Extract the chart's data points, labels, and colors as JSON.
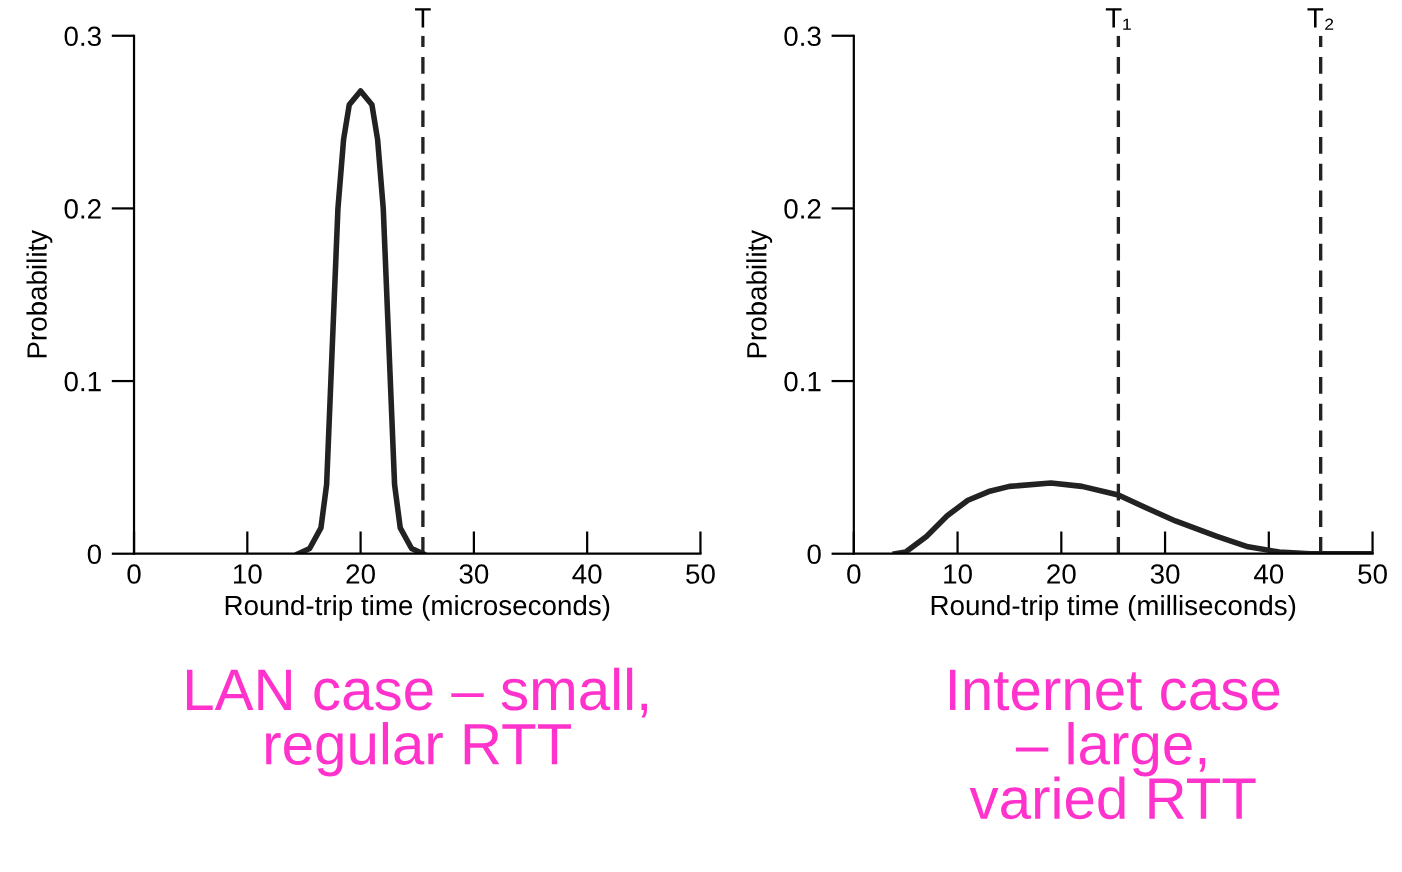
{
  "chart_data": [
    {
      "type": "line",
      "xlabel": "Round-trip time (microseconds)",
      "ylabel": "Probability",
      "xlim": [
        0,
        50
      ],
      "ylim": [
        0,
        0.3
      ],
      "xticks": [
        0,
        10,
        20,
        30,
        40,
        50
      ],
      "yticks": [
        0,
        0.1,
        0.2,
        0.3
      ],
      "series": [
        {
          "color": "#222222",
          "x": [
            14.5,
            15.5,
            16.5,
            17,
            18,
            18.5,
            19,
            20,
            21,
            21.5,
            22,
            23,
            23.5,
            24.5,
            25.5
          ],
          "values": [
            0,
            0.003,
            0.015,
            0.04,
            0.2,
            0.24,
            0.26,
            0.268,
            0.26,
            0.24,
            0.2,
            0.04,
            0.015,
            0.003,
            0
          ]
        }
      ],
      "ref_lines": [
        {
          "axis": "x",
          "value": 25.5,
          "label": "T",
          "line_style": "dashed",
          "color": "#222222"
        }
      ],
      "annotations": [
        "LAN case – small,\nregular RTT"
      ]
    },
    {
      "type": "line",
      "xlabel": "Round-trip time (milliseconds)",
      "ylabel": "Probability",
      "xlim": [
        0,
        50
      ],
      "ylim": [
        0,
        0.3
      ],
      "xticks": [
        0,
        10,
        20,
        30,
        40,
        50
      ],
      "yticks": [
        0,
        0.1,
        0.2,
        0.3
      ],
      "series": [
        {
          "color": "#222222",
          "x": [
            4,
            5,
            7,
            9,
            11,
            13,
            15,
            19,
            22,
            25.5,
            28,
            31,
            35,
            38,
            41,
            44,
            50
          ],
          "values": [
            0,
            0.001,
            0.01,
            0.022,
            0.031,
            0.036,
            0.039,
            0.041,
            0.039,
            0.034,
            0.027,
            0.019,
            0.01,
            0.004,
            0.001,
            0,
            0
          ]
        }
      ],
      "ref_lines": [
        {
          "axis": "x",
          "value": 25.5,
          "label": "T₁",
          "line_style": "dashed",
          "color": "#222222"
        },
        {
          "axis": "x",
          "value": 45,
          "label": "T₂",
          "line_style": "dashed",
          "color": "#222222"
        }
      ],
      "annotations": [
        "Internet case\n– large,\nvaried RTT"
      ]
    }
  ]
}
